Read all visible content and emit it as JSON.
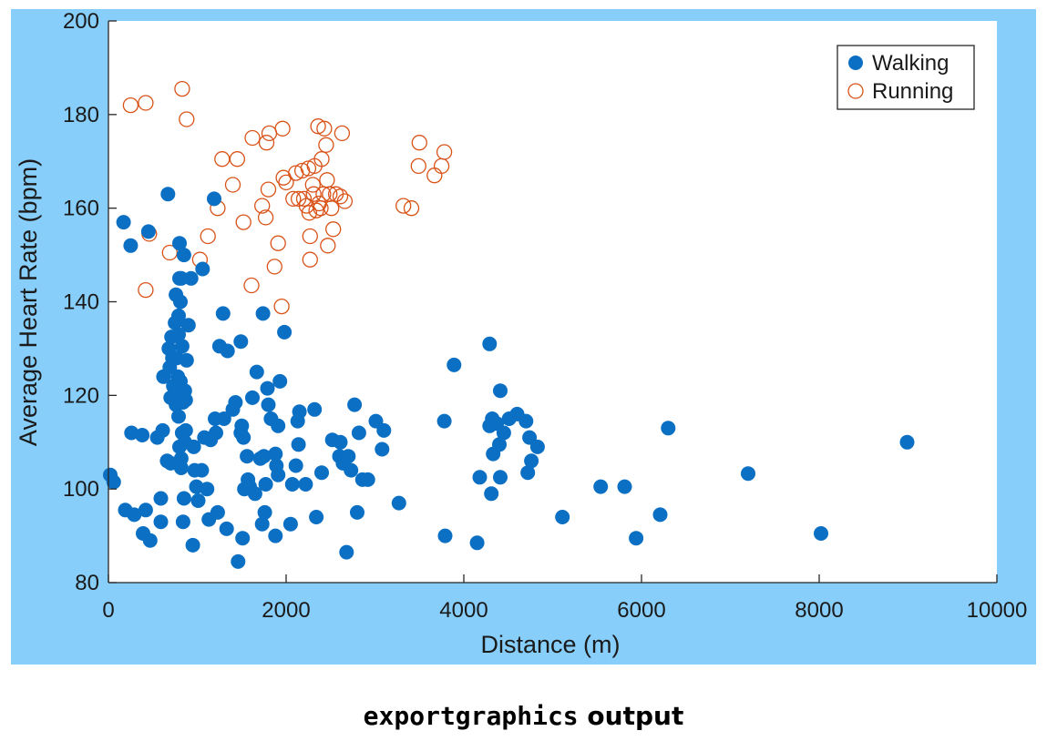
{
  "figure_background": "#87cefa",
  "caption": {
    "code": "exportgraphics",
    "rest": " output"
  },
  "chart_data": {
    "type": "scatter",
    "xlabel": "Distance (m)",
    "ylabel": "Average Heart Rate (bpm)",
    "xlim": [
      0,
      10000
    ],
    "ylim": [
      80,
      200
    ],
    "xticks": [
      0,
      2000,
      4000,
      6000,
      8000,
      10000
    ],
    "yticks": [
      80,
      100,
      120,
      140,
      160,
      180,
      200
    ],
    "grid": false,
    "legend_position": "top-right",
    "series": [
      {
        "name": "Walking",
        "marker": "filled-circle",
        "color": "#0b6fc4",
        "points": [
          [
            20,
            103
          ],
          [
            60,
            101.5
          ],
          [
            170,
            157
          ],
          [
            190,
            95.5
          ],
          [
            250,
            152
          ],
          [
            260,
            112
          ],
          [
            290,
            94.5
          ],
          [
            390,
            90.5
          ],
          [
            380,
            111.5
          ],
          [
            420,
            95.5
          ],
          [
            450,
            155
          ],
          [
            470,
            89
          ],
          [
            550,
            111
          ],
          [
            590,
            93
          ],
          [
            590,
            98
          ],
          [
            610,
            112.5
          ],
          [
            620,
            124
          ],
          [
            670,
            163
          ],
          [
            660,
            106
          ],
          [
            680,
            130
          ],
          [
            690,
            126
          ],
          [
            700,
            119.5
          ],
          [
            700,
            105.5
          ],
          [
            710,
            132.5
          ],
          [
            720,
            128
          ],
          [
            730,
            122
          ],
          [
            740,
            119.5
          ],
          [
            750,
            135.5
          ],
          [
            760,
            141.5
          ],
          [
            760,
            118
          ],
          [
            770,
            128
          ],
          [
            780,
            124
          ],
          [
            790,
            137
          ],
          [
            790,
            133
          ],
          [
            790,
            115.5
          ],
          [
            800,
            145
          ],
          [
            800,
            152.5
          ],
          [
            800,
            109
          ],
          [
            810,
            140
          ],
          [
            810,
            123
          ],
          [
            810,
            120
          ],
          [
            820,
            145
          ],
          [
            820,
            106.5
          ],
          [
            820,
            104.5
          ],
          [
            830,
            130.5
          ],
          [
            830,
            112
          ],
          [
            840,
            118.5
          ],
          [
            840,
            93
          ],
          [
            850,
            150
          ],
          [
            850,
            98
          ],
          [
            860,
            121
          ],
          [
            860,
            110
          ],
          [
            870,
            119
          ],
          [
            870,
            112.5
          ],
          [
            880,
            127.5
          ],
          [
            900,
            135
          ],
          [
            930,
            145
          ],
          [
            950,
            88
          ],
          [
            960,
            109
          ],
          [
            970,
            104
          ],
          [
            990,
            100.5
          ],
          [
            1010,
            97.5
          ],
          [
            1050,
            104
          ],
          [
            1060,
            147
          ],
          [
            1080,
            111
          ],
          [
            1110,
            100
          ],
          [
            1130,
            93.5
          ],
          [
            1150,
            110.5
          ],
          [
            1190,
            162
          ],
          [
            1200,
            115
          ],
          [
            1210,
            112
          ],
          [
            1230,
            95
          ],
          [
            1250,
            130.5
          ],
          [
            1290,
            137.5
          ],
          [
            1300,
            115
          ],
          [
            1330,
            91.5
          ],
          [
            1340,
            129.5
          ],
          [
            1400,
            117
          ],
          [
            1430,
            118.5
          ],
          [
            1460,
            84.5
          ],
          [
            1490,
            131.5
          ],
          [
            1490,
            112
          ],
          [
            1500,
            113.5
          ],
          [
            1510,
            89.5
          ],
          [
            1520,
            111
          ],
          [
            1530,
            100
          ],
          [
            1560,
            107
          ],
          [
            1570,
            102
          ],
          [
            1590,
            100.5
          ],
          [
            1620,
            119.5
          ],
          [
            1650,
            99
          ],
          [
            1670,
            125
          ],
          [
            1710,
            106.5
          ],
          [
            1730,
            92.5
          ],
          [
            1740,
            137.5
          ],
          [
            1750,
            107
          ],
          [
            1760,
            95
          ],
          [
            1770,
            101
          ],
          [
            1790,
            121.5
          ],
          [
            1800,
            118
          ],
          [
            1830,
            115
          ],
          [
            1880,
            90
          ],
          [
            1880,
            107.5
          ],
          [
            1890,
            105
          ],
          [
            1910,
            103
          ],
          [
            1910,
            113.5
          ],
          [
            1930,
            123
          ],
          [
            1980,
            133.5
          ],
          [
            2050,
            92.5
          ],
          [
            2070,
            101
          ],
          [
            2110,
            105
          ],
          [
            2130,
            114.5
          ],
          [
            2140,
            109.5
          ],
          [
            2150,
            116.5
          ],
          [
            2220,
            101
          ],
          [
            2320,
            117
          ],
          [
            2340,
            94
          ],
          [
            2400,
            103.5
          ],
          [
            2520,
            110.5
          ],
          [
            2600,
            107
          ],
          [
            2610,
            110
          ],
          [
            2640,
            105.5
          ],
          [
            2680,
            86.5
          ],
          [
            2700,
            107
          ],
          [
            2730,
            104
          ],
          [
            2770,
            118
          ],
          [
            2800,
            95
          ],
          [
            2820,
            112
          ],
          [
            2860,
            102
          ],
          [
            2920,
            102
          ],
          [
            3010,
            114.5
          ],
          [
            3080,
            108.5
          ],
          [
            3100,
            112.5
          ],
          [
            3270,
            97
          ],
          [
            3780,
            114.5
          ],
          [
            3790,
            90
          ],
          [
            3890,
            126.5
          ],
          [
            4150,
            88.5
          ],
          [
            4180,
            102.5
          ],
          [
            4290,
            131
          ],
          [
            4290,
            113.5
          ],
          [
            4310,
            99
          ],
          [
            4320,
            115
          ],
          [
            4330,
            107.5
          ],
          [
            4370,
            114
          ],
          [
            4400,
            109.5
          ],
          [
            4410,
            121
          ],
          [
            4410,
            102.5
          ],
          [
            4450,
            112
          ],
          [
            4510,
            115
          ],
          [
            4600,
            116
          ],
          [
            4700,
            114.5
          ],
          [
            4720,
            103.5
          ],
          [
            4740,
            111
          ],
          [
            4760,
            106
          ],
          [
            4830,
            109
          ],
          [
            5110,
            94
          ],
          [
            5540,
            100.5
          ],
          [
            5810,
            100.5
          ],
          [
            5940,
            89.5
          ],
          [
            6210,
            94.5
          ],
          [
            6300,
            113
          ],
          [
            7200,
            103.3
          ],
          [
            8020,
            90.5
          ],
          [
            8990,
            110
          ]
        ]
      },
      {
        "name": "Running",
        "marker": "open-circle",
        "color": "#d95319",
        "points": [
          [
            250,
            182
          ],
          [
            420,
            182.5
          ],
          [
            420,
            142.5
          ],
          [
            460,
            154.5
          ],
          [
            690,
            150.5
          ],
          [
            830,
            185.5
          ],
          [
            880,
            179
          ],
          [
            1030,
            149
          ],
          [
            1120,
            154
          ],
          [
            1230,
            160
          ],
          [
            1280,
            170.5
          ],
          [
            1400,
            165
          ],
          [
            1450,
            170.5
          ],
          [
            1520,
            157
          ],
          [
            1610,
            143.5
          ],
          [
            1620,
            175
          ],
          [
            1730,
            160.5
          ],
          [
            1770,
            158
          ],
          [
            1780,
            174
          ],
          [
            1800,
            164
          ],
          [
            1810,
            176
          ],
          [
            1870,
            147.5
          ],
          [
            1910,
            152.5
          ],
          [
            1950,
            139
          ],
          [
            1960,
            177
          ],
          [
            1970,
            166.5
          ],
          [
            2000,
            165.5
          ],
          [
            2080,
            162
          ],
          [
            2110,
            167.5
          ],
          [
            2140,
            162
          ],
          [
            2180,
            168
          ],
          [
            2200,
            162
          ],
          [
            2230,
            160.5
          ],
          [
            2250,
            168.5
          ],
          [
            2260,
            159
          ],
          [
            2270,
            154
          ],
          [
            2270,
            149
          ],
          [
            2300,
            165
          ],
          [
            2310,
            163
          ],
          [
            2320,
            169
          ],
          [
            2340,
            159.5
          ],
          [
            2360,
            177.5
          ],
          [
            2370,
            161
          ],
          [
            2390,
            160
          ],
          [
            2400,
            170.5
          ],
          [
            2420,
            163
          ],
          [
            2430,
            177
          ],
          [
            2450,
            173.5
          ],
          [
            2460,
            166
          ],
          [
            2470,
            152
          ],
          [
            2490,
            163
          ],
          [
            2510,
            160
          ],
          [
            2530,
            155.5
          ],
          [
            2560,
            163
          ],
          [
            2610,
            162.5
          ],
          [
            2630,
            176
          ],
          [
            2660,
            161.5
          ],
          [
            3320,
            160.5
          ],
          [
            3410,
            160
          ],
          [
            3490,
            169
          ],
          [
            3500,
            174
          ],
          [
            3670,
            167
          ],
          [
            3750,
            169
          ],
          [
            3780,
            172
          ]
        ]
      }
    ]
  }
}
